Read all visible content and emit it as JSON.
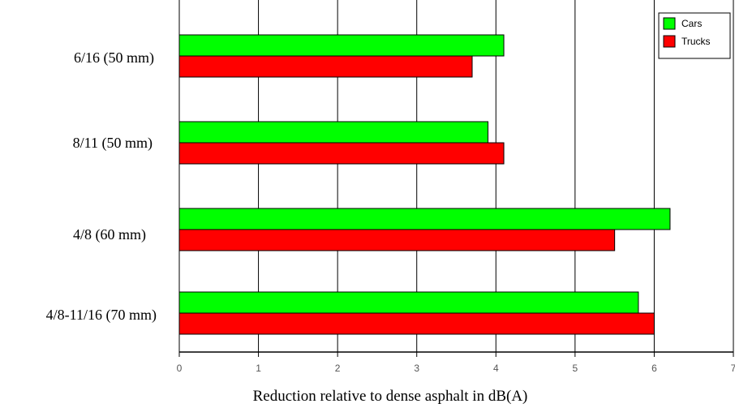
{
  "chart_data": {
    "type": "bar",
    "orientation": "horizontal",
    "categories": [
      "6/16 (50 mm)",
      "8/11 (50 mm)",
      "4/8 (60 mm)",
      "4/8-11/16 (70 mm)"
    ],
    "series": [
      {
        "name": "Cars",
        "color": "#00ff00",
        "values": [
          4.1,
          3.9,
          6.2,
          5.8
        ]
      },
      {
        "name": "Trucks",
        "color": "#ff0000",
        "values": [
          3.7,
          4.1,
          5.5,
          6.0
        ]
      }
    ],
    "xlabel": "Reduction relative to dense asphalt in dB(A)",
    "ylabel": "",
    "xlim": [
      0,
      7
    ],
    "xticks": [
      "0",
      "1",
      "2",
      "3",
      "4",
      "5",
      "6",
      "7"
    ],
    "grid": "vertical",
    "legend_position": "top-right"
  }
}
